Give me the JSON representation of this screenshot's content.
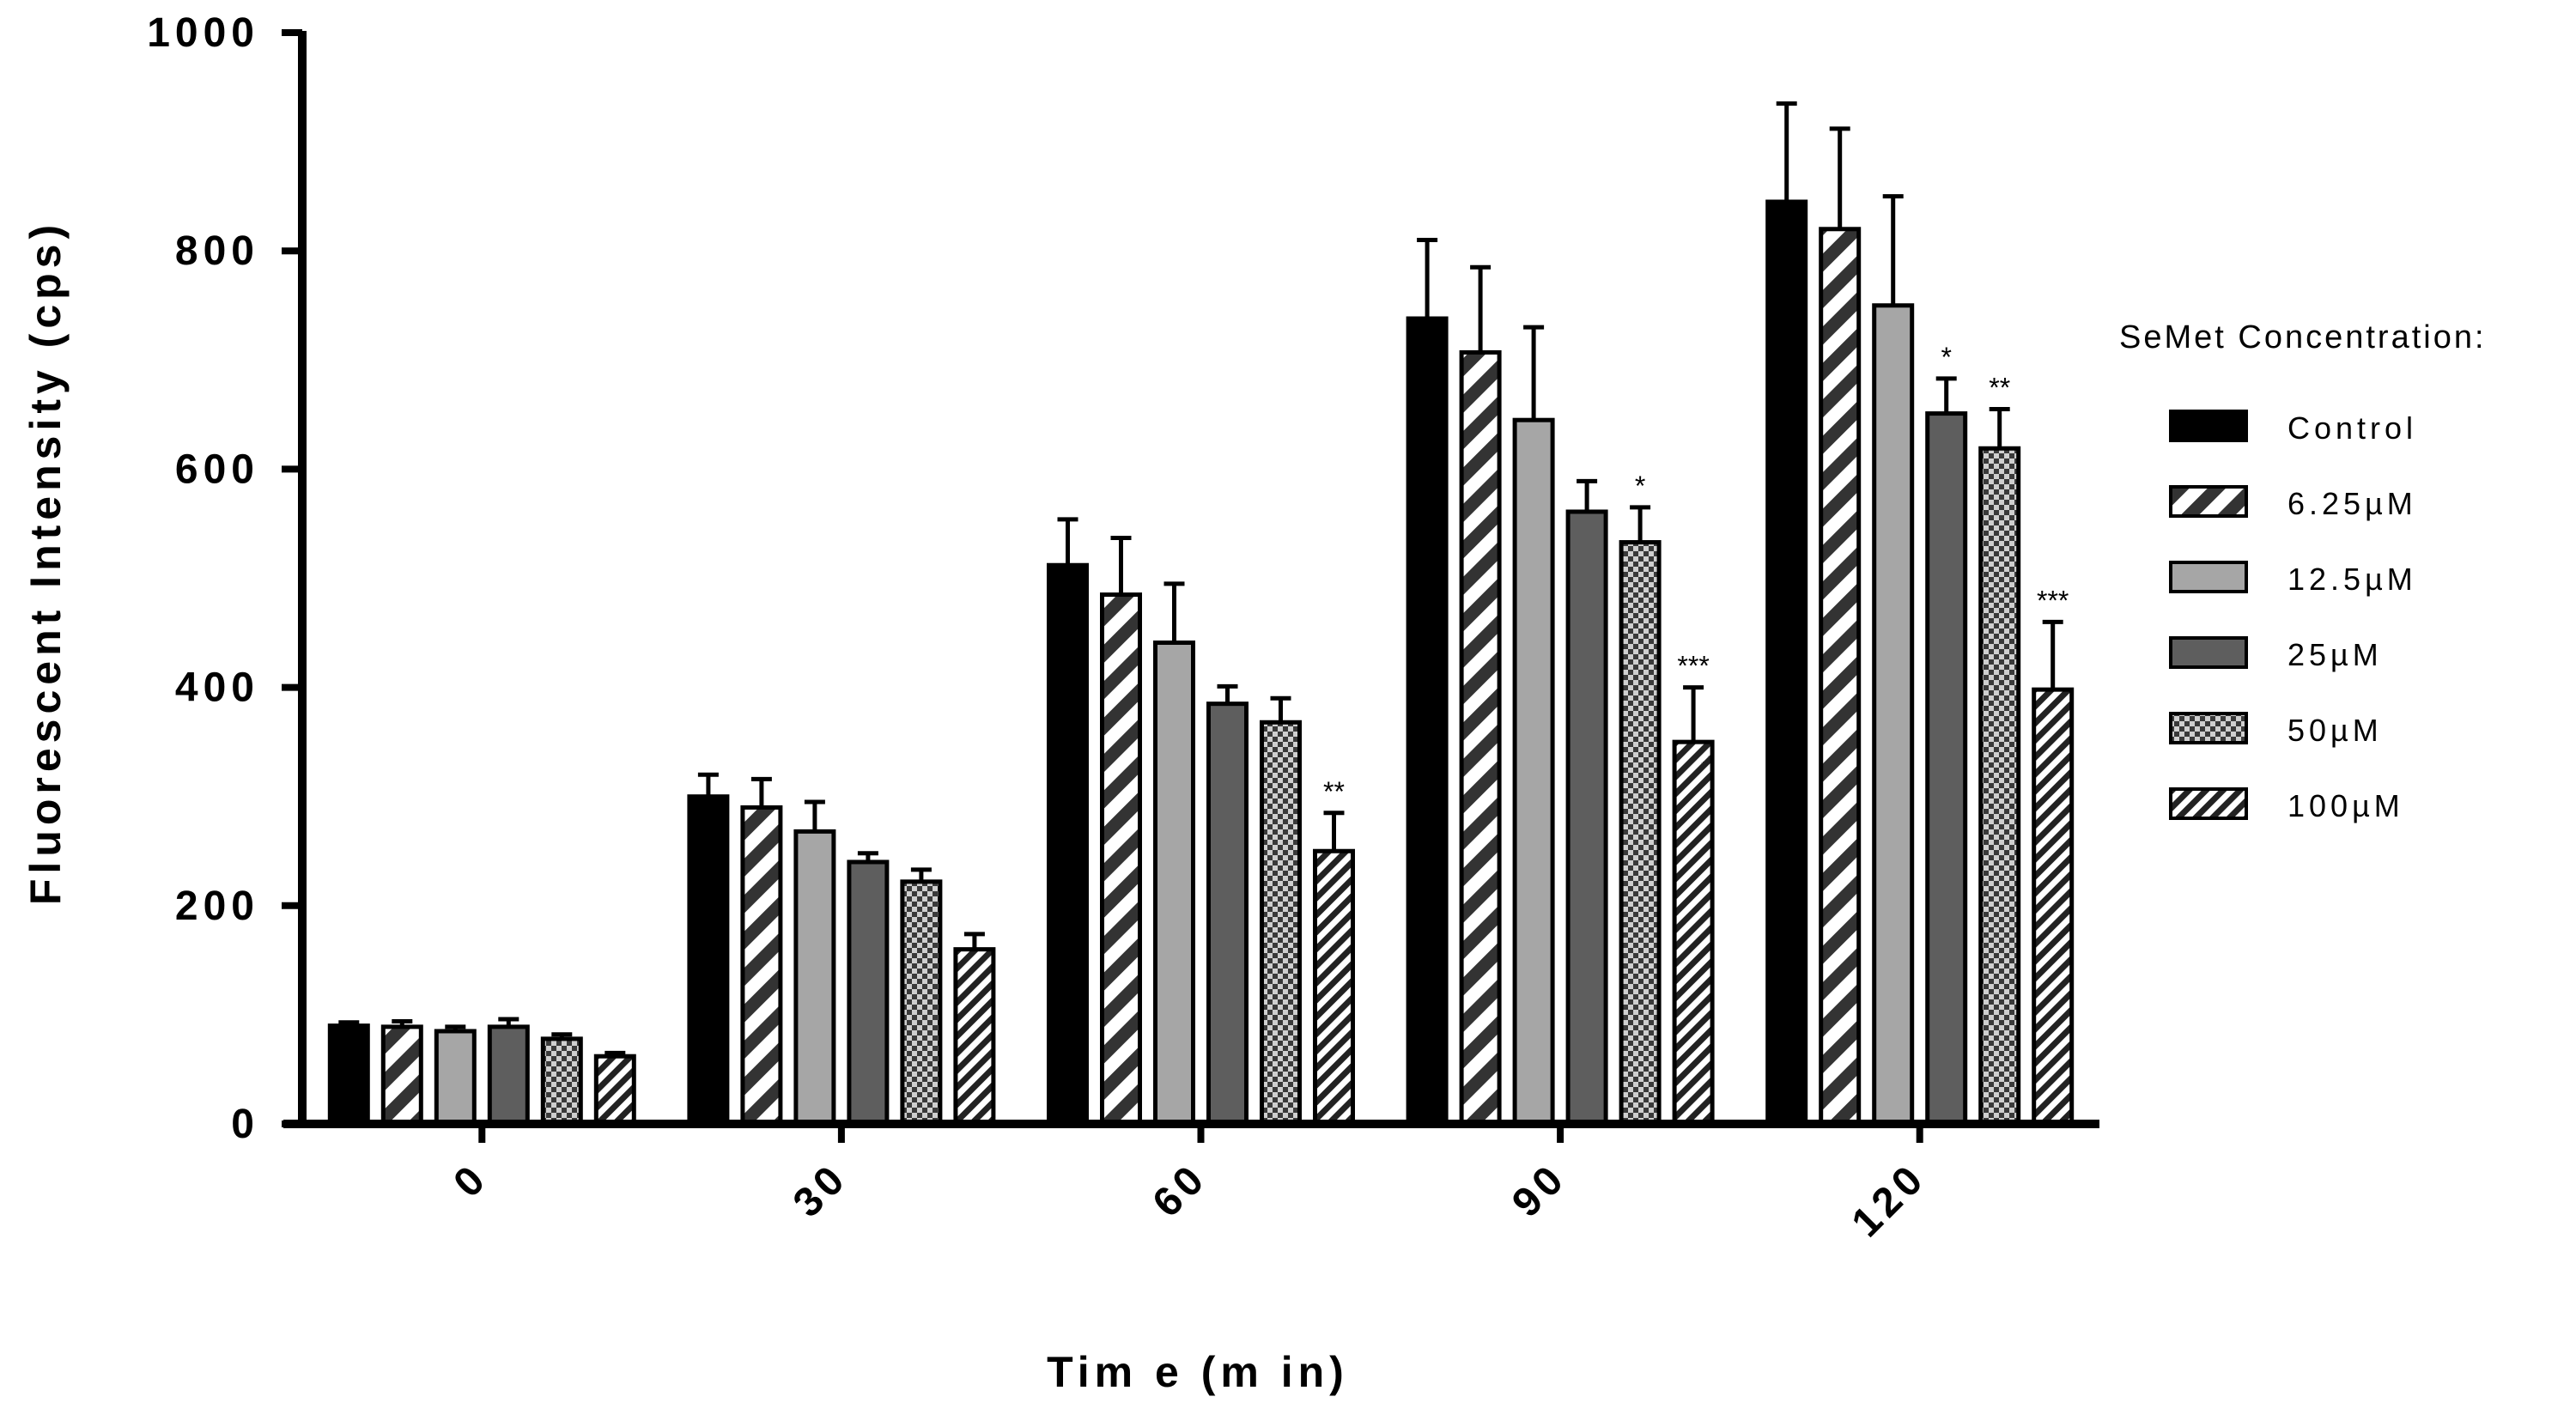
{
  "chart_data": {
    "type": "bar",
    "title": "",
    "xlabel": "Tim e (m in)",
    "ylabel": "Fluorescent Intensity (cps)",
    "ylim": [
      0,
      1000
    ],
    "yticks": [
      "0",
      "200",
      "400",
      "600",
      "800",
      "1000"
    ],
    "categories": [
      "0",
      "30",
      "60",
      "90",
      "120"
    ],
    "legend_title": "SeMet Concentration:",
    "legend_position": "right",
    "series": [
      {
        "name": "Control",
        "pattern": "solid-black",
        "values": [
          90,
          300,
          512,
          738,
          845
        ],
        "errors": [
          3,
          20,
          42,
          72,
          90
        ],
        "significance": [
          "",
          "",
          "",
          "",
          ""
        ]
      },
      {
        "name": "6.25µM",
        "pattern": "diagonal-stripes-dark",
        "values": [
          89,
          290,
          485,
          707,
          820
        ],
        "errors": [
          5,
          26,
          52,
          78,
          92
        ],
        "significance": [
          "",
          "",
          "",
          "",
          ""
        ]
      },
      {
        "name": "12.5µM",
        "pattern": "solid-light-gray",
        "values": [
          85,
          268,
          441,
          645,
          750
        ],
        "errors": [
          4,
          27,
          54,
          85,
          100
        ],
        "significance": [
          "",
          "",
          "",
          "",
          ""
        ]
      },
      {
        "name": "25µM",
        "pattern": "solid-dark-gray",
        "values": [
          89,
          240,
          385,
          561,
          651
        ],
        "errors": [
          7,
          8,
          16,
          28,
          32
        ],
        "significance": [
          "",
          "",
          "",
          "",
          "*"
        ]
      },
      {
        "name": "50µM",
        "pattern": "checkered",
        "values": [
          78,
          222,
          368,
          533,
          619
        ],
        "errors": [
          4,
          11,
          22,
          32,
          36
        ],
        "significance": [
          "",
          "",
          "",
          "*",
          "**"
        ]
      },
      {
        "name": "100µM",
        "pattern": "fine-diagonal-stripes",
        "values": [
          62,
          160,
          250,
          350,
          398
        ],
        "errors": [
          3,
          14,
          35,
          50,
          62
        ],
        "significance": [
          "",
          "",
          "**",
          "***",
          "***"
        ]
      }
    ]
  }
}
